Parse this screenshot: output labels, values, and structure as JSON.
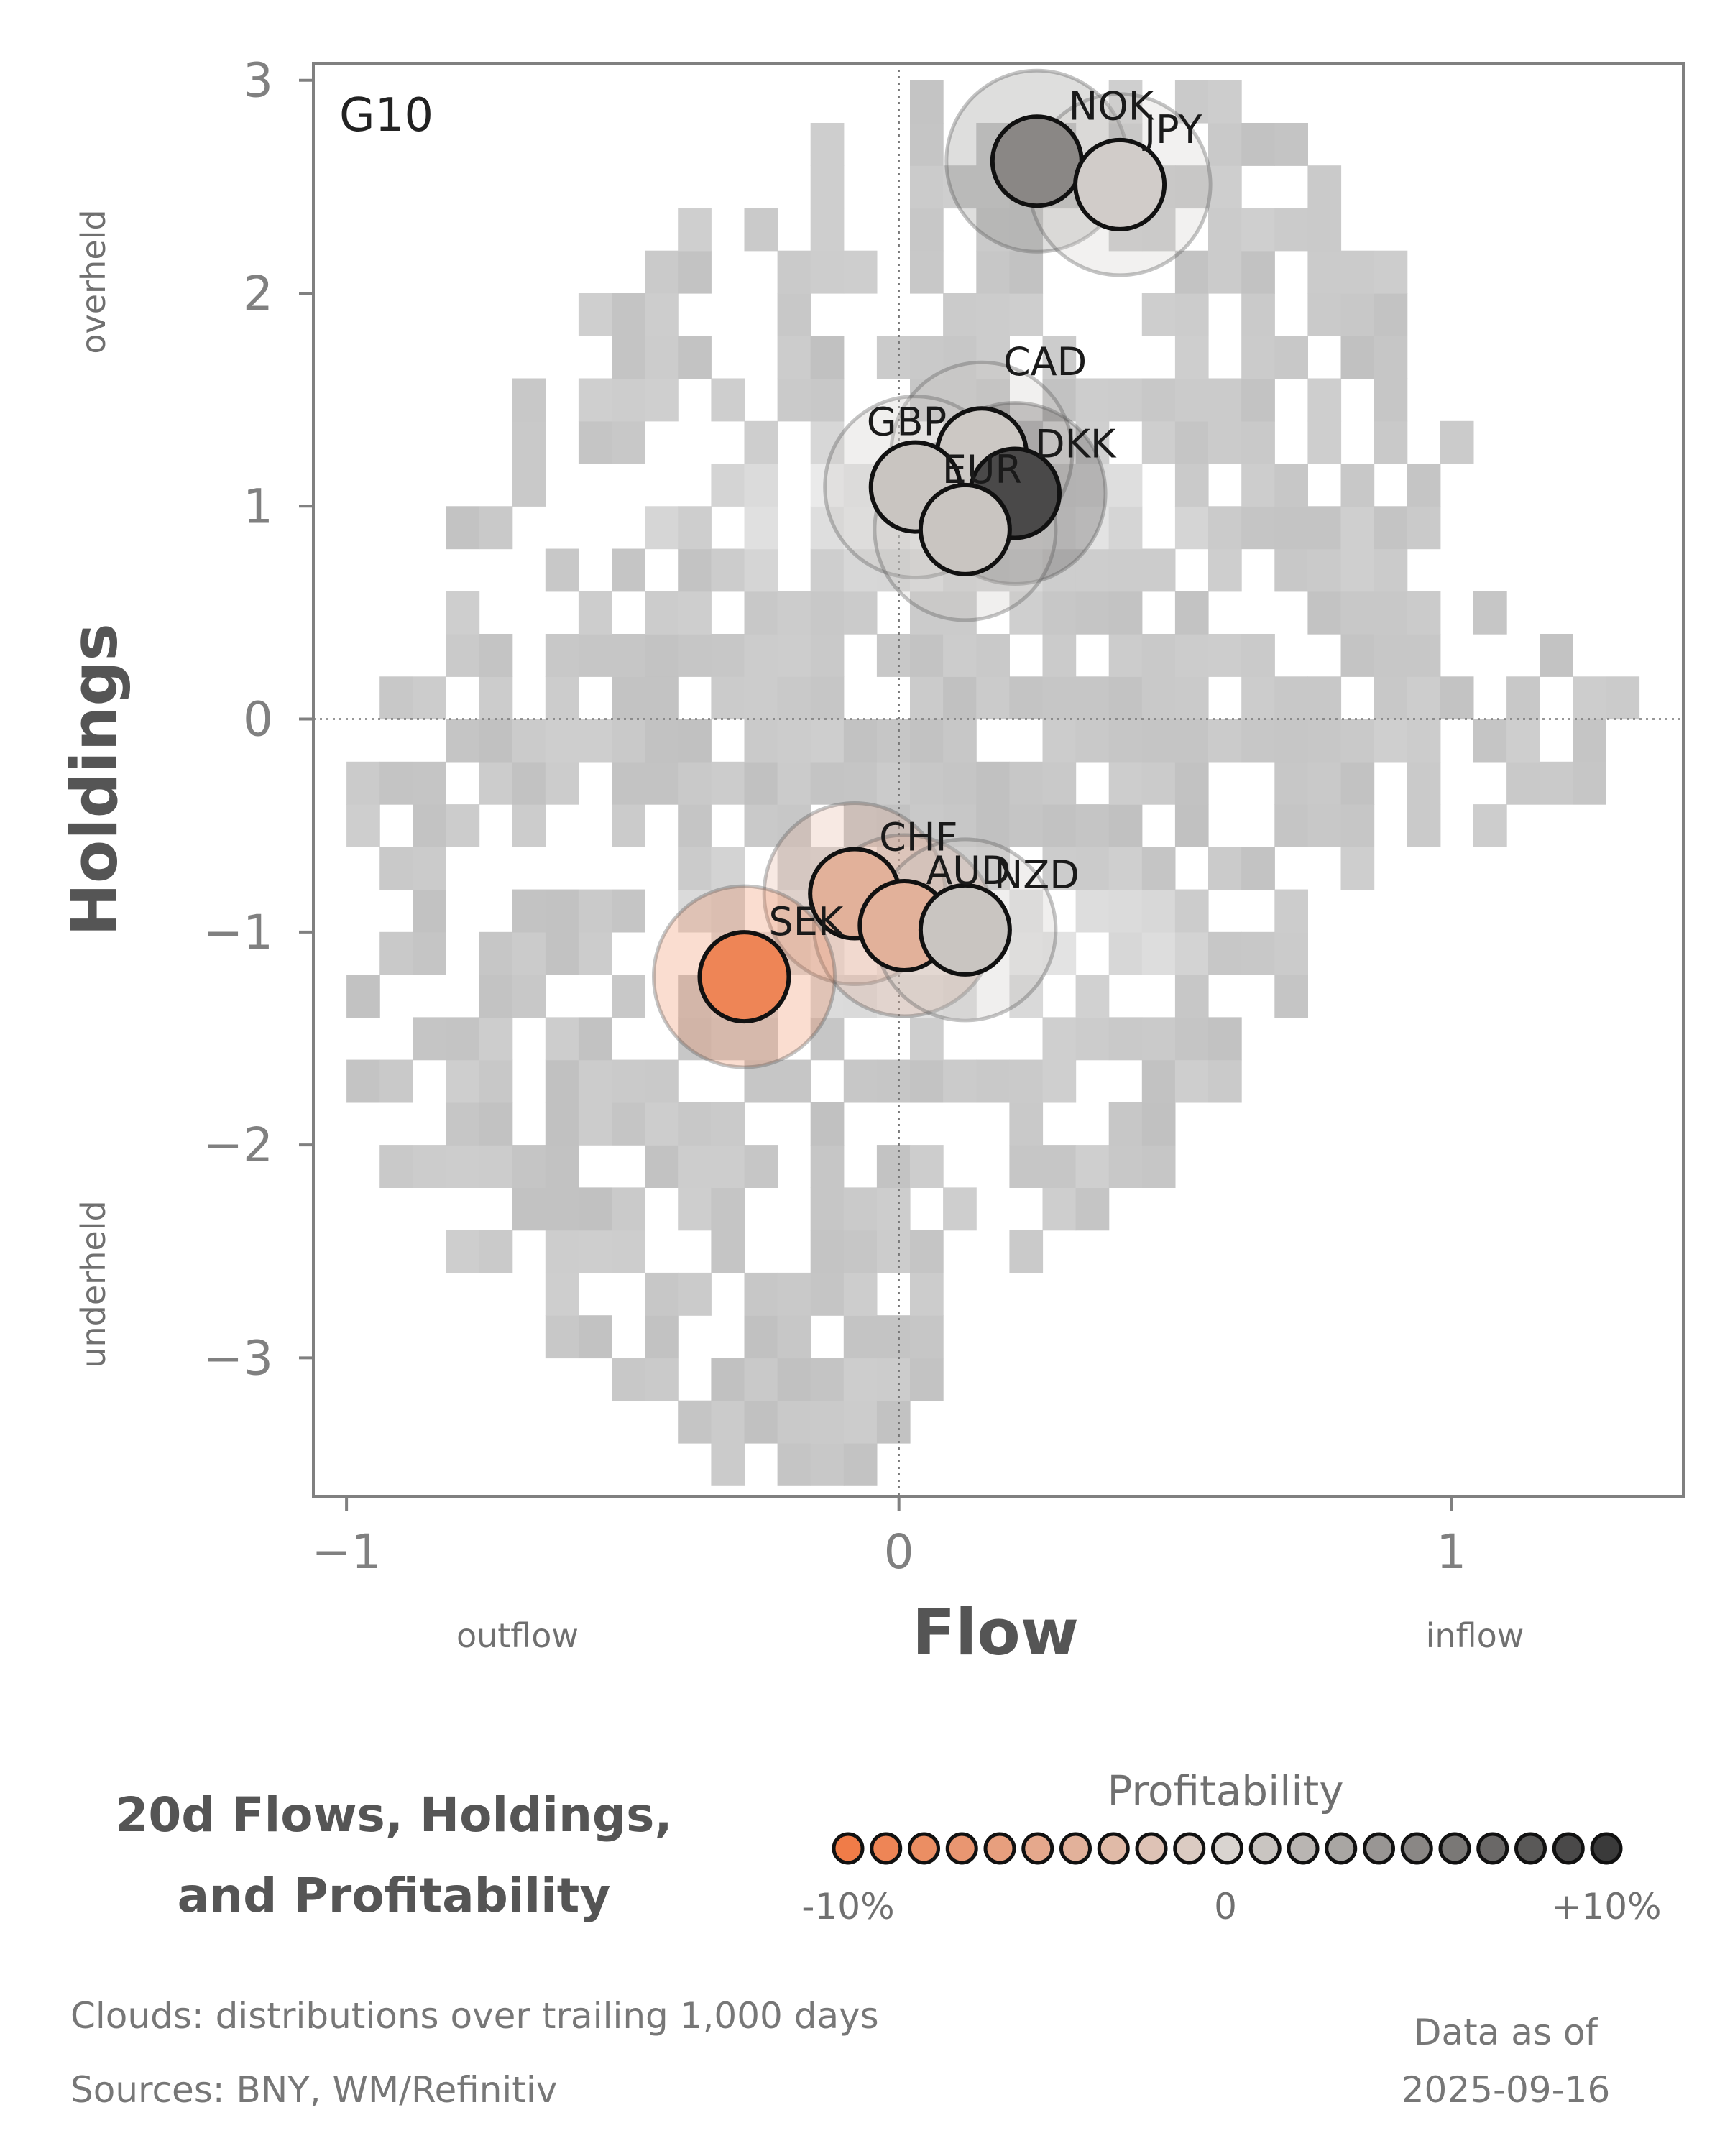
{
  "chart_data": {
    "type": "scatter",
    "panel_label": "G10",
    "xlabel": "Flow",
    "ylabel": "Holdings",
    "x_left_label": "outflow",
    "x_right_label": "inflow",
    "y_top_label": "overheld",
    "y_bottom_label": "underheld",
    "xlim": [
      -1.06,
      1.42
    ],
    "ylim": [
      -3.65,
      3.08
    ],
    "xticks": [
      -1,
      0,
      1
    ],
    "yticks": [
      -3,
      -2,
      -1,
      0,
      1,
      2,
      3
    ],
    "xtick_labels": [
      "−1",
      "0",
      "1"
    ],
    "ytick_labels": [
      "−3",
      "−2",
      "−1",
      "0",
      "1",
      "2",
      "3"
    ],
    "reference_lines": {
      "x": 0,
      "y": 0,
      "style": "dotted"
    },
    "background": "heatmap cloud",
    "points": [
      {
        "name": "NOK",
        "x": 0.25,
        "y": 2.62,
        "profitability": 5
      },
      {
        "name": "JPY",
        "x": 0.4,
        "y": 2.51,
        "profitability": 0.5
      },
      {
        "name": "CAD",
        "x": 0.15,
        "y": 1.25,
        "profitability": 0.8
      },
      {
        "name": "GBP",
        "x": 0.03,
        "y": 1.09,
        "profitability": 1
      },
      {
        "name": "DKK",
        "x": 0.21,
        "y": 1.06,
        "profitability": 9
      },
      {
        "name": "EUR",
        "x": 0.12,
        "y": 0.89,
        "profitability": 1
      },
      {
        "name": "CHF",
        "x": -0.08,
        "y": -0.82,
        "profitability": -4
      },
      {
        "name": "AUD",
        "x": 0.01,
        "y": -0.97,
        "profitability": -4
      },
      {
        "name": "NZD",
        "x": 0.12,
        "y": -0.99,
        "profitability": 1
      },
      {
        "name": "SEK",
        "x": -0.28,
        "y": -1.21,
        "profitability": -9
      }
    ],
    "colorbar": {
      "title": "Profitability",
      "min_label": "-10%",
      "mid_label": "0",
      "max_label": "+10%",
      "low_color": "#f07c48",
      "mid_color": "#d9d4d0",
      "high_color": "#3a3a3a"
    }
  },
  "title": {
    "line1": "20d Flows, Holdings,",
    "line2": "and Profitability"
  },
  "footer": {
    "clouds": "Clouds:  distributions over trailing 1,000 days",
    "sources": "Sources:  BNY, WM/Refinitiv",
    "asof_label": "Data as of",
    "asof_date": "2025-09-16"
  }
}
